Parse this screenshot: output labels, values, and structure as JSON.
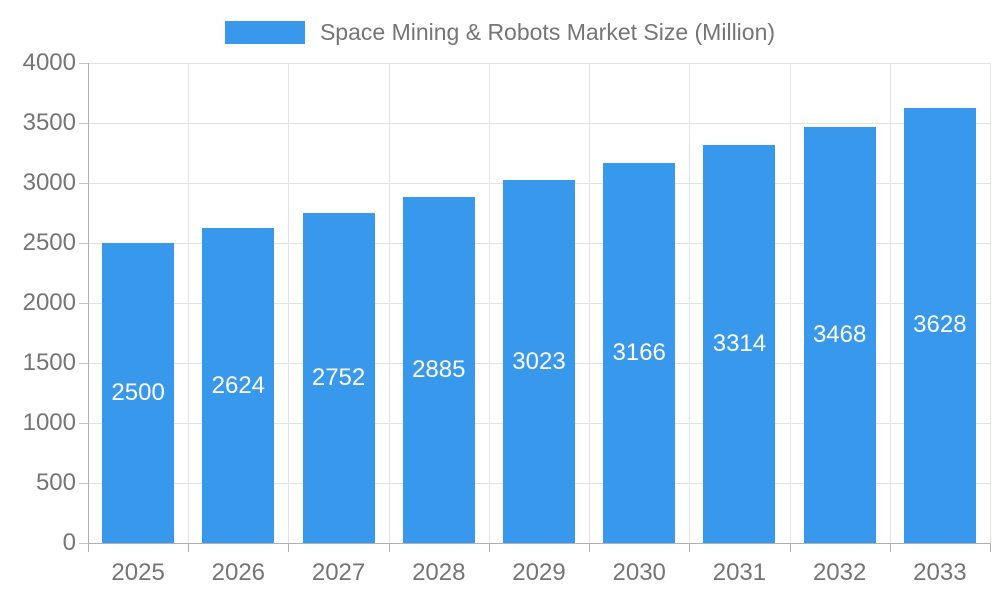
{
  "chart_data": {
    "type": "bar",
    "title": "Space Mining & Robots Market Size (Million)",
    "legend_position": "top",
    "categories": [
      "2025",
      "2026",
      "2027",
      "2028",
      "2029",
      "2030",
      "2031",
      "2032",
      "2033"
    ],
    "values": [
      2500,
      2624,
      2752,
      2885,
      3023,
      3166,
      3314,
      3468,
      3628
    ],
    "data_labels_visible": true,
    "xlabel": "",
    "ylabel": "",
    "ylim": [
      0,
      4000
    ],
    "y_ticks": [
      0,
      500,
      1000,
      1500,
      2000,
      2500,
      3000,
      3500,
      4000
    ],
    "grid": true,
    "colors": {
      "bar": "#3899EC",
      "bar_value_text": "#ffffff",
      "grid_line": "#e3e3e3",
      "axis_line": "#b0b0b0",
      "y_tick_mark": "#c6c6c6",
      "tick_text": "#757575",
      "legend_text": "#757575"
    }
  }
}
